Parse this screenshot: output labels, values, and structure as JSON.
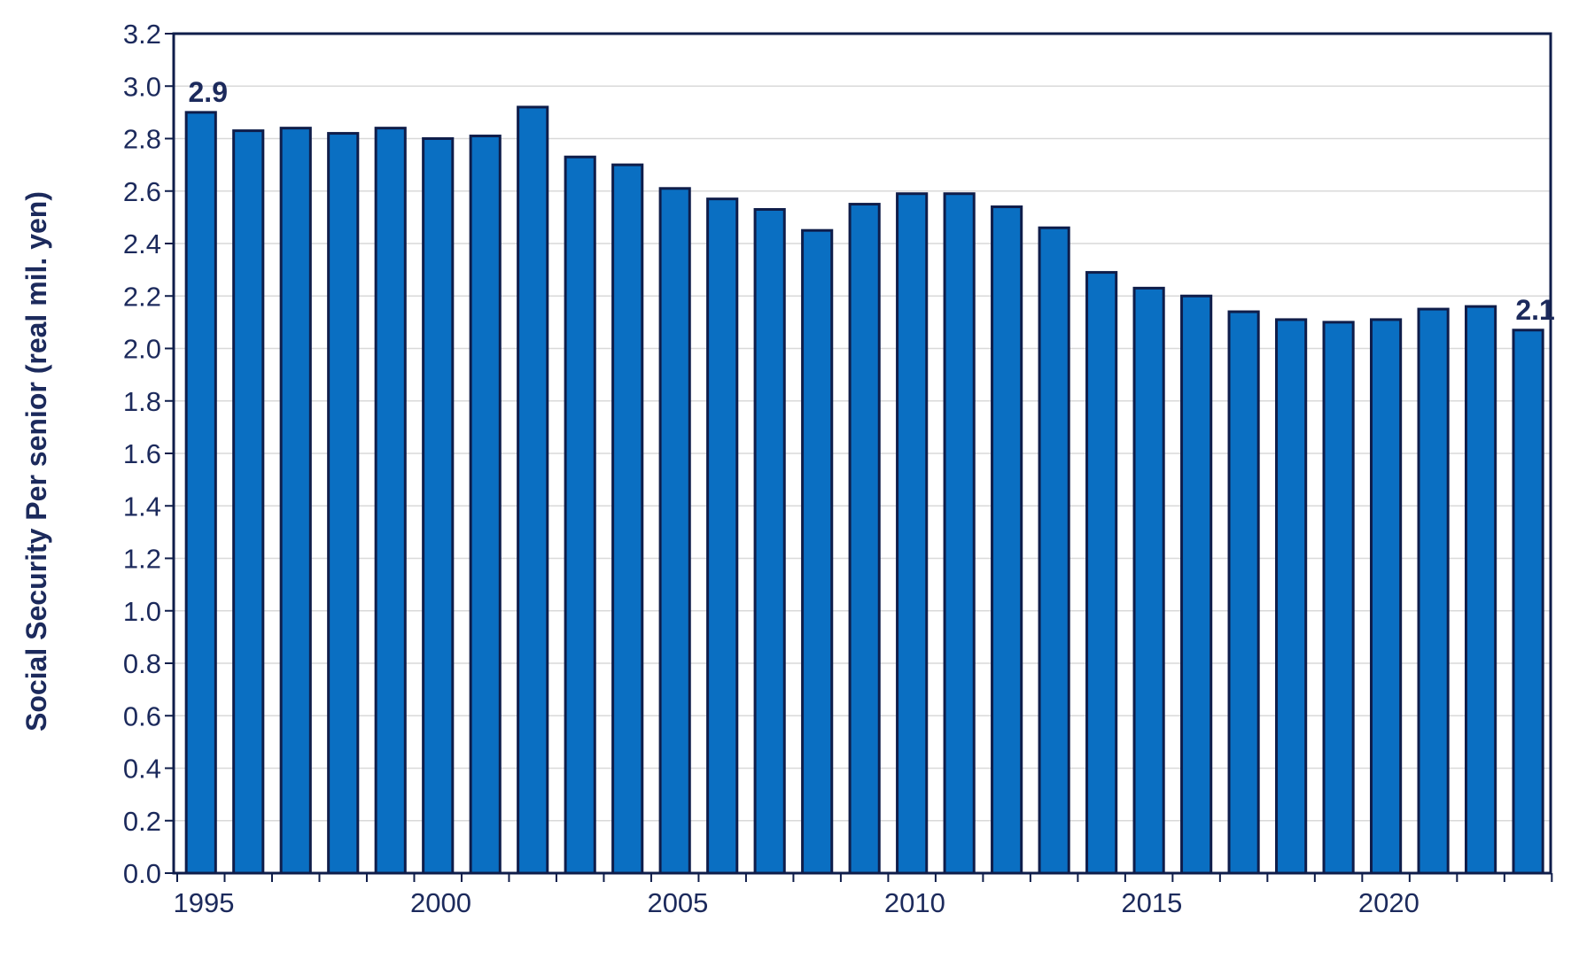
{
  "chart_data": {
    "type": "bar",
    "title": "",
    "xlabel": "",
    "ylabel": "Social Security Per senior (real mil. yen)",
    "ylim": [
      0,
      3.2
    ],
    "ytick_step": 0.2,
    "x_tick_labels": [
      "1995",
      "2000",
      "2005",
      "2010",
      "2015",
      "2020"
    ],
    "categories": [
      1995,
      1996,
      1997,
      1998,
      1999,
      2000,
      2001,
      2002,
      2003,
      2004,
      2005,
      2006,
      2007,
      2008,
      2009,
      2010,
      2011,
      2012,
      2013,
      2014,
      2015,
      2016,
      2017,
      2018,
      2019,
      2020,
      2021,
      2022,
      2023
    ],
    "values": [
      2.9,
      2.83,
      2.84,
      2.82,
      2.84,
      2.8,
      2.81,
      2.92,
      2.73,
      2.7,
      2.61,
      2.57,
      2.53,
      2.45,
      2.55,
      2.59,
      2.59,
      2.54,
      2.46,
      2.29,
      2.23,
      2.2,
      2.14,
      2.11,
      2.1,
      2.11,
      2.15,
      2.16,
      2.07
    ],
    "data_labels": [
      {
        "index": 0,
        "text": "2.9"
      },
      {
        "index": 28,
        "text": "2.1"
      }
    ],
    "grid": true,
    "colors": {
      "bar_fill": "#0a6fc2",
      "bar_stroke": "#0f1d4a",
      "axis": "#0f1d4a",
      "text": "#1c2a5c",
      "grid": "#d9d9d9"
    }
  }
}
